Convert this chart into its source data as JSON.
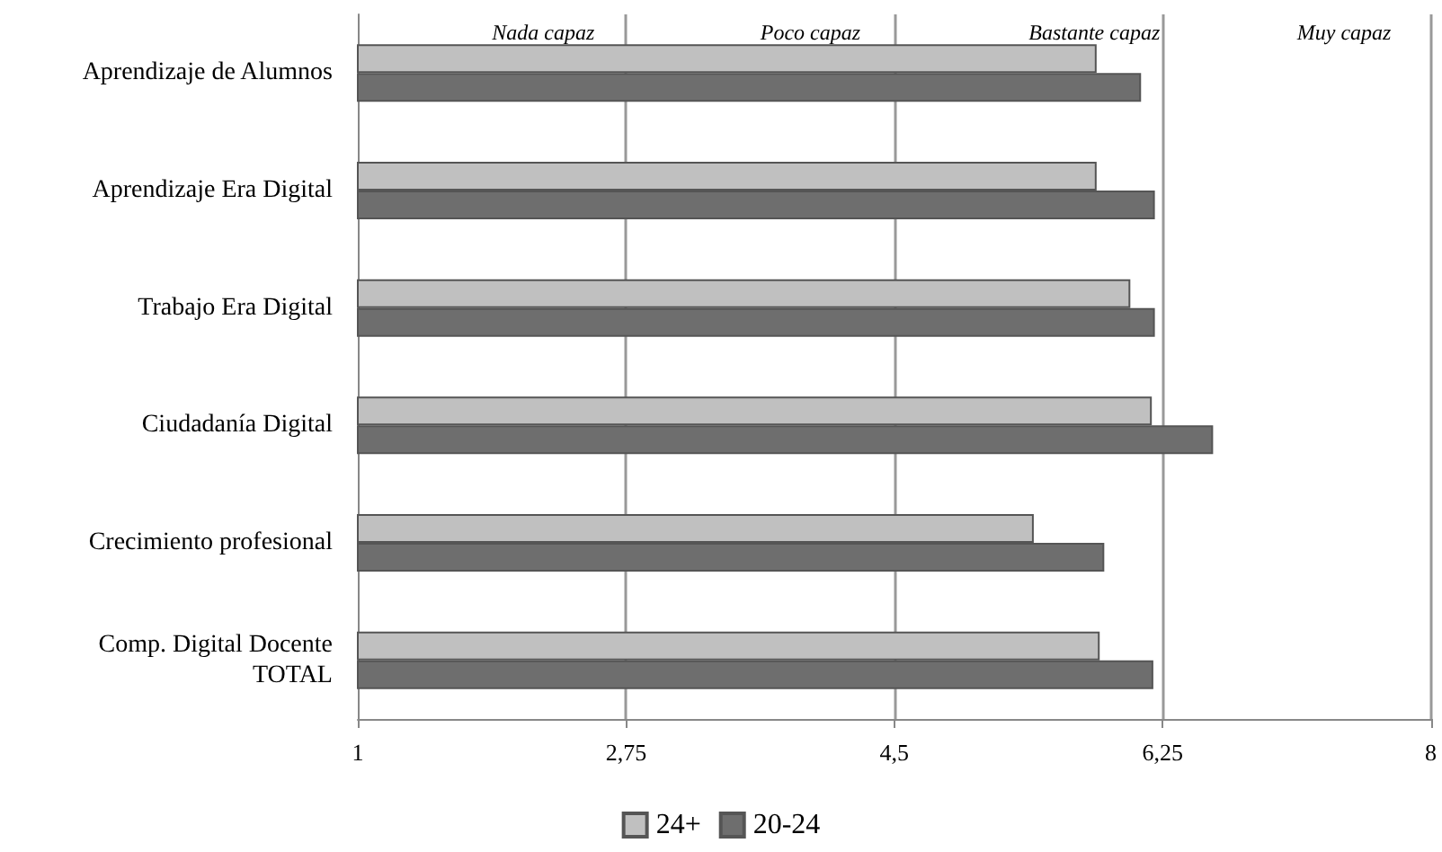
{
  "chart_data": {
    "type": "bar",
    "orientation": "horizontal",
    "categories": [
      "Aprendizaje de Alumnos",
      "Aprendizaje Era Digital",
      "Trabajo Era Digital",
      "Ciudadanía Digital",
      "Crecimiento profesional",
      "Comp. Digital Docente\nTOTAL"
    ],
    "series": [
      {
        "name": "24+",
        "color": "#c0c0c0",
        "values": [
          5.82,
          5.82,
          6.04,
          6.18,
          5.41,
          5.84
        ]
      },
      {
        "name": "20-24",
        "color": "#6e6e6e",
        "values": [
          6.11,
          6.2,
          6.2,
          6.58,
          5.87,
          6.19
        ]
      }
    ],
    "xlim": [
      1,
      8
    ],
    "xticks": [
      1,
      {
        "value": 2.75,
        "label": "2,75"
      },
      {
        "value": 4.5,
        "label": "4,5"
      },
      {
        "value": 6.25,
        "label": "6,25"
      },
      8
    ],
    "annotations": [
      "Nada capaz",
      "Poco capaz",
      "Bastante capaz",
      "Muy capaz"
    ],
    "grid": "x",
    "legend": "bottom"
  }
}
